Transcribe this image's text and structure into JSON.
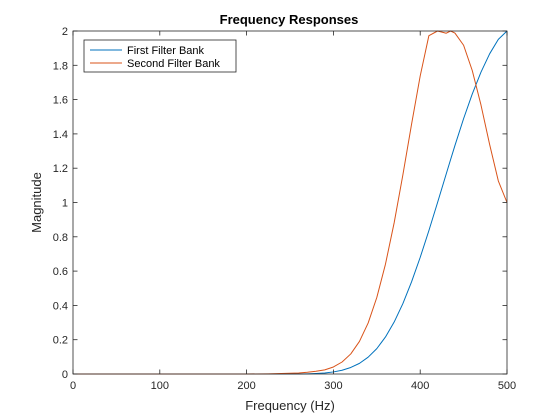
{
  "chart_data": {
    "type": "line",
    "title": "Frequency Responses",
    "xlabel": "Frequency (Hz)",
    "ylabel": "Magnitude",
    "xlim": [
      0,
      500
    ],
    "ylim": [
      0,
      2
    ],
    "xticks": [
      0,
      100,
      200,
      300,
      400,
      500
    ],
    "yticks": [
      0,
      0.2,
      0.4,
      0.6,
      0.8,
      1,
      1.2,
      1.4,
      1.6,
      1.8,
      2
    ],
    "xtick_labels": [
      "0",
      "100",
      "200",
      "300",
      "400",
      "500"
    ],
    "ytick_labels": [
      "0",
      "0.2",
      "0.4",
      "0.6",
      "0.8",
      "1",
      "1.2",
      "1.4",
      "1.6",
      "1.8",
      "2"
    ],
    "grid": false,
    "legend_position": "top-left",
    "x": [
      0,
      50,
      100,
      150,
      200,
      225,
      250,
      260,
      270,
      280,
      290,
      300,
      310,
      320,
      330,
      340,
      350,
      360,
      370,
      380,
      390,
      400,
      410,
      420,
      430,
      435,
      440,
      450,
      460,
      470,
      480,
      490,
      500
    ],
    "series": [
      {
        "name": "First Filter Bank",
        "color": "#0072BD",
        "values": [
          0,
          0,
          0,
          0,
          0,
          0,
          0,
          0,
          0.001,
          0.003,
          0.006,
          0.012,
          0.022,
          0.038,
          0.062,
          0.098,
          0.148,
          0.216,
          0.303,
          0.41,
          0.537,
          0.68,
          0.836,
          1.0,
          1.167,
          1.25,
          1.332,
          1.489,
          1.633,
          1.76,
          1.867,
          1.951,
          2.0
        ]
      },
      {
        "name": "Second Filter Bank",
        "color": "#D95319",
        "values": [
          0,
          0,
          0,
          0,
          0,
          0.001,
          0.004,
          0.006,
          0.01,
          0.016,
          0.024,
          0.041,
          0.07,
          0.117,
          0.19,
          0.297,
          0.446,
          0.641,
          0.882,
          1.16,
          1.455,
          1.738,
          1.973,
          2.0,
          1.987,
          2.0,
          1.988,
          1.917,
          1.769,
          1.569,
          1.338,
          1.126,
          1.0
        ]
      }
    ]
  }
}
